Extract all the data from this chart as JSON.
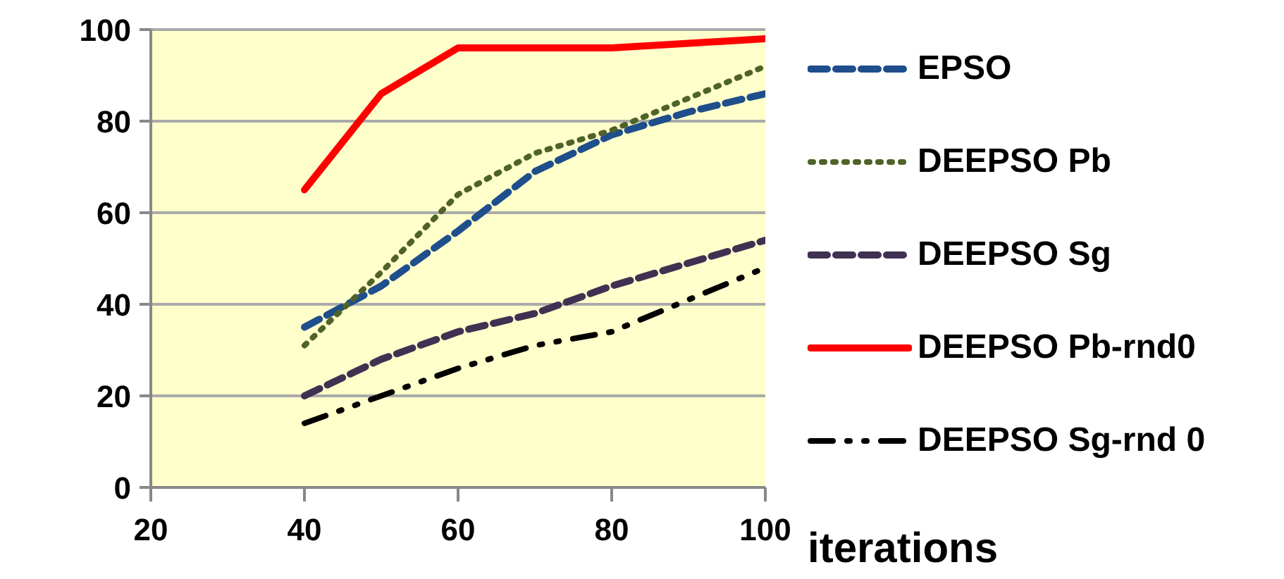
{
  "chart_data": {
    "type": "line",
    "xlabel": "iterations",
    "x": [
      40,
      50,
      60,
      70,
      80,
      90,
      100
    ],
    "series": [
      {
        "name": "EPSO",
        "color": "#1f4e8c",
        "line_style": "dashed",
        "values": [
          35,
          44,
          56,
          69,
          77,
          82,
          86
        ]
      },
      {
        "name": "DEEPSO Pb",
        "color": "#4f6228",
        "line_style": "dotted",
        "values": [
          31,
          47,
          64,
          73,
          78,
          85,
          92
        ]
      },
      {
        "name": "DEEPSO Sg",
        "color": "#403152",
        "line_style": "dashed",
        "values": [
          20,
          28,
          34,
          38,
          44,
          49,
          54
        ]
      },
      {
        "name": "DEEPSO Pb-rnd0",
        "color": "#ff0000",
        "line_style": "solid",
        "values": [
          65,
          86,
          96,
          96,
          96,
          97,
          98
        ]
      },
      {
        "name": "DEEPSO Sg-rnd 0",
        "color": "#000000",
        "line_style": "dashdot",
        "values": [
          14,
          20,
          26,
          31,
          34,
          41,
          48
        ]
      }
    ],
    "xlim": [
      20,
      100
    ],
    "xticks": [
      20,
      40,
      60,
      80,
      100
    ],
    "ylim": [
      0,
      100
    ],
    "yticks": [
      0,
      20,
      40,
      60,
      80,
      100
    ],
    "grid": "y",
    "legend": "right",
    "marker": "none"
  }
}
